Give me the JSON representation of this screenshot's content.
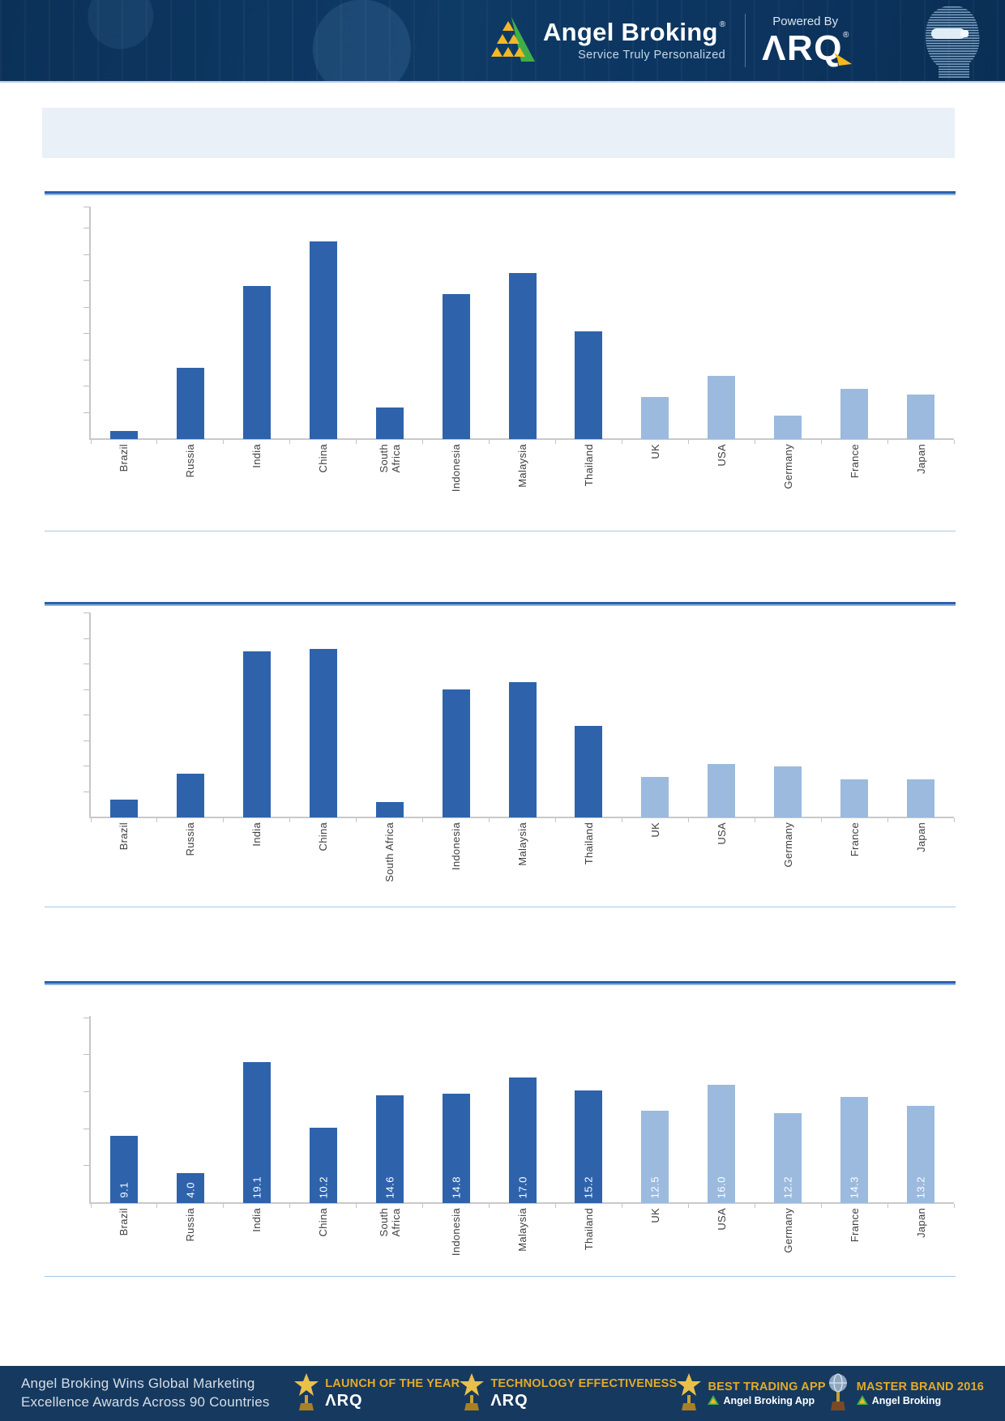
{
  "header": {
    "brand": "Angel Broking",
    "registered": "®",
    "tagline": "Service Truly Personalized",
    "powered_by": "Powered By",
    "arq_logo": "ΛRQ",
    "colors": {
      "header_navy": "#0e3a66",
      "accent_yellow": "#f2b826",
      "accent_green": "#3fae49"
    }
  },
  "title_banner": {
    "text": ""
  },
  "chart_style": {
    "emerging_color": "#2e63ac",
    "developed_color": "#9bbade",
    "axis_color": "#c6c6c6",
    "label_color": "#3f3f3f",
    "value_label_color": "#ffffff"
  },
  "chart_data": [
    {
      "name": "chart-1",
      "type": "bar",
      "categories": [
        "Brazil",
        "Russia",
        "India",
        "China",
        "South\nAfrica",
        "Indonesia",
        "Malaysia",
        "Thailand",
        "UK",
        "USA",
        "Germany",
        "France",
        "Japan"
      ],
      "values": [
        0.3,
        2.7,
        5.8,
        7.5,
        1.2,
        5.5,
        6.3,
        4.1,
        1.6,
        2.4,
        0.9,
        1.9,
        1.7
      ],
      "ymax": 8.8,
      "tick_step": 1,
      "show_values": false,
      "group_split": 8,
      "title": "",
      "xlabel": "",
      "ylabel": "",
      "grid": false,
      "legend": false
    },
    {
      "name": "chart-2",
      "type": "bar",
      "categories": [
        "Brazil",
        "Russia",
        "India",
        "China",
        "South Africa",
        "Indonesia",
        "Malaysia",
        "Thailand",
        "UK",
        "USA",
        "Germany",
        "France",
        "Japan"
      ],
      "values": [
        0.7,
        1.7,
        6.5,
        6.6,
        0.6,
        5.0,
        5.3,
        3.6,
        1.6,
        2.1,
        2.0,
        1.5,
        1.5
      ],
      "ymax": 8,
      "tick_step": 1,
      "show_values": false,
      "group_split": 8,
      "title": "",
      "xlabel": "",
      "ylabel": "",
      "grid": false,
      "legend": false
    },
    {
      "name": "chart-3",
      "type": "bar",
      "categories": [
        "Brazil",
        "Russia",
        "India",
        "China",
        "South\nAfrica",
        "Indonesia",
        "Malaysia",
        "Thailand",
        "UK",
        "USA",
        "Germany",
        "France",
        "Japan"
      ],
      "values": [
        9.1,
        4.0,
        19.1,
        10.2,
        14.6,
        14.8,
        17.0,
        15.2,
        12.5,
        16.0,
        12.2,
        14.3,
        13.2
      ],
      "value_labels": [
        "9.1",
        "4.0",
        "19.1",
        "10.2",
        "14.6",
        "14.8",
        "17.0",
        "15.2",
        "12.5",
        "16.0",
        "12.2",
        "14.3",
        "13.2"
      ],
      "ymax": 25.2,
      "tick_step": 5,
      "show_values": true,
      "group_split": 8,
      "title": "",
      "xlabel": "",
      "ylabel": "",
      "grid": false,
      "legend": false
    }
  ],
  "footer": {
    "headline_line1": "Angel Broking Wins Global Marketing",
    "headline_line2": "Excellence Awards Across 90 Countries",
    "awards": [
      {
        "title": "LAUNCH OF THE YEAR",
        "subtitle": "ΛRQ",
        "icon": "star-trophy"
      },
      {
        "title": "TECHNOLOGY EFFECTIVENESS",
        "subtitle": "ΛRQ",
        "icon": "star-trophy"
      },
      {
        "title": "BEST TRADING APP",
        "subtitle": "Angel Broking App",
        "icon": "star-trophy"
      },
      {
        "title": "MASTER BRAND 2016",
        "subtitle": "Angel Broking",
        "icon": "globe-trophy"
      }
    ]
  }
}
